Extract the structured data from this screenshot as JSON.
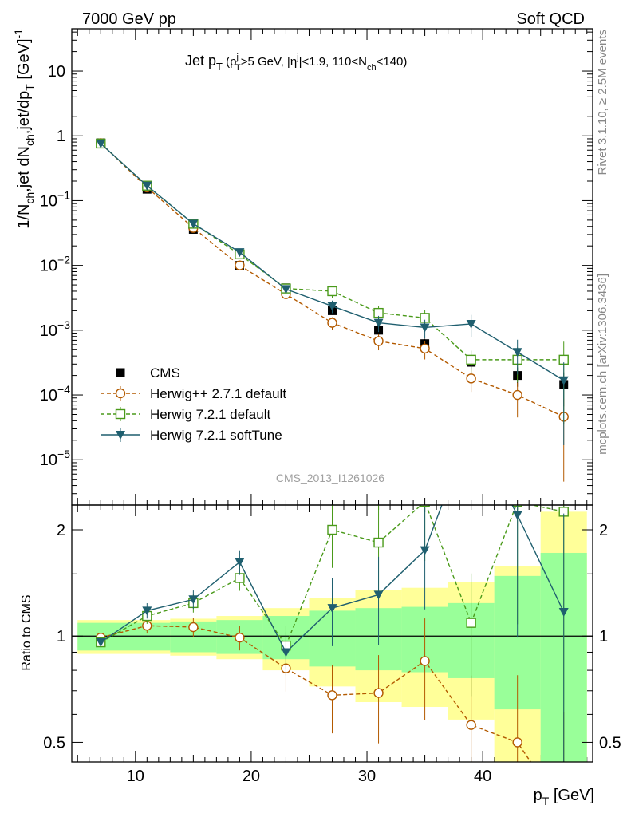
{
  "header": {
    "left": "7000 GeV pp",
    "right": "Soft QCD"
  },
  "side": {
    "top": "Rivet 3.1.10, ≥ 2.5M events",
    "bottom": "mcplots.cern.ch [arXiv:1306.3436]"
  },
  "watermark": "CMS_2013_I1261026",
  "chart_data": [
    {
      "type": "line",
      "panel": "main",
      "title_parts": {
        "t1": "Jet p",
        "t2": "T",
        "t3": " (p",
        "t4": "j",
        "t5": "T",
        "t6": ">5 GeV, |η",
        "t7": "j",
        "t8": "|<1.9, 110<N",
        "t9": "ch",
        "t10": "<140)"
      },
      "ylabel_parts": {
        "a": "1/N",
        "b": "ch",
        "c": ",jet dN",
        "d": "ch",
        "e": ",jet/dp",
        "f": "T",
        "g": " [GeV]",
        "h": "-1"
      },
      "y_scale": "log",
      "ylim": [
        2e-06,
        45
      ],
      "xlim": [
        4.5,
        49.5
      ],
      "y_ticks": [
        {
          "value": 10,
          "base": "10",
          "exp": ""
        },
        {
          "value": 1,
          "base": "1",
          "exp": ""
        },
        {
          "value": 0.1,
          "base": "10",
          "exp": "−1"
        },
        {
          "value": 0.01,
          "base": "10",
          "exp": "−2"
        },
        {
          "value": 0.001,
          "base": "10",
          "exp": "−3"
        },
        {
          "value": 0.0001,
          "base": "10",
          "exp": "−4"
        },
        {
          "value": 1e-05,
          "base": "10",
          "exp": "−5"
        }
      ],
      "x": [
        7,
        11,
        15,
        19,
        23,
        27,
        31,
        35,
        39,
        43,
        47
      ],
      "series": [
        {
          "name": "CMS",
          "color": "#000000",
          "style": "data",
          "values": [
            0.78,
            0.15,
            0.036,
            0.01,
            0.0045,
            0.002,
            0.001,
            0.00062,
            0.00032,
            0.0002,
            0.000145
          ]
        },
        {
          "name": "Herwig++ 2.7.1 default",
          "color": "#b35a00",
          "style": "circle-dashed",
          "values": [
            0.77,
            0.16,
            0.038,
            0.01,
            0.0036,
            0.0013,
            0.00068,
            0.00052,
            0.00018,
            0.0001,
            4.6e-05
          ]
        },
        {
          "name": "Herwig 7.2.1 default",
          "color": "#4a9a1a",
          "style": "square-dashed",
          "values": [
            0.76,
            0.17,
            0.044,
            0.0148,
            0.0044,
            0.004,
            0.00185,
            0.00155,
            0.00035,
            0.00035,
            0.00035
          ]
        },
        {
          "name": "Herwig 7.2.1 softTune",
          "color": "#1f5f6f",
          "style": "triangle-solid",
          "values": [
            0.76,
            0.17,
            0.044,
            0.016,
            0.0043,
            0.00235,
            0.0013,
            0.0011,
            0.00125,
            0.00046,
            0.000168
          ]
        }
      ]
    },
    {
      "type": "line",
      "panel": "ratio",
      "ylabel": "Ratio to CMS",
      "y_scale": "log",
      "ylim": [
        0.44,
        2.35
      ],
      "xlim": [
        4.5,
        49.5
      ],
      "xlabel_parts": {
        "a": "p",
        "b": "T",
        "c": " [GeV]"
      },
      "x_ticks": [
        "10",
        "20",
        "30",
        "40"
      ],
      "y_ticks": [
        "0.5",
        "1",
        "2"
      ],
      "x": [
        7,
        11,
        15,
        19,
        23,
        27,
        31,
        35,
        39,
        43,
        47
      ],
      "bands": {
        "edges": [
          5,
          9,
          13,
          17,
          21,
          25,
          29,
          33,
          37,
          41,
          45,
          49
        ],
        "green": [
          [
            0.91,
            1.09
          ],
          [
            0.91,
            1.09
          ],
          [
            0.9,
            1.1
          ],
          [
            0.89,
            1.11
          ],
          [
            0.86,
            1.14
          ],
          [
            0.82,
            1.18
          ],
          [
            0.8,
            1.2
          ],
          [
            0.79,
            1.21
          ],
          [
            0.76,
            1.24
          ],
          [
            0.62,
            1.48
          ],
          [
            0.42,
            1.72
          ]
        ],
        "yellow": [
          [
            0.89,
            1.11
          ],
          [
            0.89,
            1.11
          ],
          [
            0.88,
            1.12
          ],
          [
            0.86,
            1.14
          ],
          [
            0.8,
            1.2
          ],
          [
            0.72,
            1.28
          ],
          [
            0.65,
            1.35
          ],
          [
            0.63,
            1.37
          ],
          [
            0.58,
            1.42
          ],
          [
            0.42,
            1.58
          ],
          [
            0.42,
            2.25
          ]
        ]
      },
      "series": [
        {
          "name": "Herwig++ 2.7.1 default",
          "color": "#b35a00",
          "style": "circle-dashed",
          "values": [
            0.99,
            1.07,
            1.06,
            0.99,
            0.81,
            0.68,
            0.69,
            0.85,
            0.56,
            0.5,
            0.32
          ]
        },
        {
          "name": "Herwig 7.2.1 default",
          "color": "#4a9a1a",
          "style": "square-dashed",
          "values": [
            0.96,
            1.14,
            1.24,
            1.46,
            0.94,
            2.0,
            1.84,
            2.4,
            1.09,
            2.4,
            2.25
          ]
        },
        {
          "name": "Herwig 7.2.1 softTune",
          "color": "#1f5f6f",
          "style": "triangle-solid",
          "values": [
            0.96,
            1.18,
            1.27,
            1.62,
            0.9,
            1.2,
            1.31,
            1.75,
            3.9,
            2.2,
            1.17
          ]
        }
      ]
    }
  ]
}
